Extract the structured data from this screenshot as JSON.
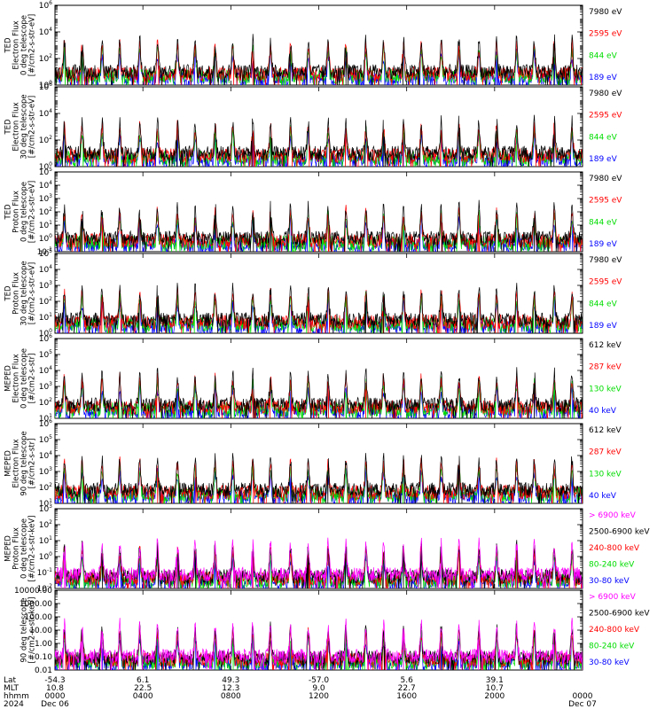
{
  "panels": [
    {
      "ylabel": [
        "TED",
        "Electron Flux",
        "0 deg telescope",
        "[#/cm2-s-str-eV]"
      ],
      "scale": "log",
      "yticks": [
        "10^0",
        "10^2",
        "10^4",
        "10^6"
      ],
      "ymin_exp": 0,
      "ymax_exp": 6,
      "legend": [
        {
          "label": "7980 eV",
          "color": "#000000"
        },
        {
          "label": "2595 eV",
          "color": "#ff0000"
        },
        {
          "label": "844 eV",
          "color": "#00dd00"
        },
        {
          "label": "189 eV",
          "color": "#0000ff"
        }
      ]
    },
    {
      "ylabel": [
        "TED",
        "Electron Flux",
        "30 deg telescope",
        "[#/cm2-s-str-eV]"
      ],
      "scale": "log",
      "yticks": [
        "10^0",
        "10^2",
        "10^4",
        "10^6"
      ],
      "ymin_exp": 0,
      "ymax_exp": 6,
      "legend": [
        {
          "label": "7980 eV",
          "color": "#000000"
        },
        {
          "label": "2595 eV",
          "color": "#ff0000"
        },
        {
          "label": "844 eV",
          "color": "#00dd00"
        },
        {
          "label": "189 eV",
          "color": "#0000ff"
        }
      ]
    },
    {
      "ylabel": [
        "TED",
        "Proton Flux",
        "0 deg telescope",
        "[#/cm2-s-str-eV]"
      ],
      "scale": "log",
      "yticks": [
        "10^-1",
        "10^0",
        "10^1",
        "10^2",
        "10^3",
        "10^4",
        "10^5"
      ],
      "ymin_exp": -1,
      "ymax_exp": 5,
      "legend": [
        {
          "label": "7980 eV",
          "color": "#000000"
        },
        {
          "label": "2595 eV",
          "color": "#ff0000"
        },
        {
          "label": "844 eV",
          "color": "#00dd00"
        },
        {
          "label": "189 eV",
          "color": "#0000ff"
        }
      ]
    },
    {
      "ylabel": [
        "TED",
        "Proton Flux",
        "30 deg telescope",
        "[#/cm2-s-str-eV]"
      ],
      "scale": "log",
      "yticks": [
        "10^0",
        "10^1",
        "10^2",
        "10^3",
        "10^4",
        "10^5"
      ],
      "ymin_exp": 0,
      "ymax_exp": 5,
      "legend": [
        {
          "label": "7980 eV",
          "color": "#000000"
        },
        {
          "label": "2595 eV",
          "color": "#ff0000"
        },
        {
          "label": "844 eV",
          "color": "#00dd00"
        },
        {
          "label": "189 eV",
          "color": "#0000ff"
        }
      ]
    },
    {
      "ylabel": [
        "MEPED",
        "Electron Flux",
        "0 deg telescope",
        "[#/cm2-s-str]"
      ],
      "scale": "log",
      "yticks": [
        "10^1",
        "10^2",
        "10^3",
        "10^4",
        "10^5",
        "10^6"
      ],
      "ymin_exp": 1,
      "ymax_exp": 6,
      "legend": [
        {
          "label": "612 keV",
          "color": "#000000"
        },
        {
          "label": "287 keV",
          "color": "#ff0000"
        },
        {
          "label": "130 keV",
          "color": "#00dd00"
        },
        {
          "label": "40 keV",
          "color": "#0000ff"
        }
      ]
    },
    {
      "ylabel": [
        "MEPED",
        "Electron Flux",
        "90 deg telescope",
        "[#/cm2-s-str]"
      ],
      "scale": "log",
      "yticks": [
        "10^1",
        "10^2",
        "10^3",
        "10^4",
        "10^5",
        "10^6"
      ],
      "ymin_exp": 1,
      "ymax_exp": 6,
      "legend": [
        {
          "label": "612 keV",
          "color": "#000000"
        },
        {
          "label": "287 keV",
          "color": "#ff0000"
        },
        {
          "label": "130 keV",
          "color": "#00dd00"
        },
        {
          "label": "40 keV",
          "color": "#0000ff"
        }
      ]
    },
    {
      "ylabel": [
        "MEPED",
        "Proton Flux",
        "0 deg telescope",
        "[#/cm2-s-str-keV]"
      ],
      "scale": "log",
      "yticks": [
        "10^-2",
        "10^-1",
        "10^0",
        "10^1",
        "10^2",
        "10^3"
      ],
      "ymin_exp": -2,
      "ymax_exp": 3,
      "legend": [
        {
          "label": "> 6900 keV",
          "color": "#ff00ff"
        },
        {
          "label": "2500-6900 keV",
          "color": "#000000"
        },
        {
          "label": "240-800 keV",
          "color": "#ff0000"
        },
        {
          "label": "80-240 keV",
          "color": "#00dd00"
        },
        {
          "label": "30-80 keV",
          "color": "#0000ff"
        }
      ]
    },
    {
      "ylabel": [
        "",
        "",
        "90 deg telescope",
        "[#/cm2-s-str-keV]"
      ],
      "scale": "log",
      "yticks": [
        "0.01",
        "0.10",
        "1.00",
        "10.00",
        "100.00",
        "1000.00",
        "10000.00"
      ],
      "ymin_exp": -2,
      "ymax_exp": 4,
      "legend": [
        {
          "label": "> 6900 keV",
          "color": "#ff00ff"
        },
        {
          "label": "2500-6900 keV",
          "color": "#000000"
        },
        {
          "label": "240-800 keV",
          "color": "#ff0000"
        },
        {
          "label": "80-240 keV",
          "color": "#00dd00"
        },
        {
          "label": "30-80 keV",
          "color": "#0000ff"
        }
      ]
    }
  ],
  "xaxis": {
    "row_labels": [
      "Lat",
      "MLT",
      "hhmm",
      "2024"
    ],
    "ticks": [
      {
        "lat": "-54.3",
        "mlt": "10.8",
        "hhmm": "0000",
        "date": "Dec 06"
      },
      {
        "lat": "6.1",
        "mlt": "22.5",
        "hhmm": "0400",
        "date": ""
      },
      {
        "lat": "49.3",
        "mlt": "12.3",
        "hhmm": "0800",
        "date": ""
      },
      {
        "lat": "-57.0",
        "mlt": "9.0",
        "hhmm": "1200",
        "date": ""
      },
      {
        "lat": "5.6",
        "mlt": "22.7",
        "hhmm": "1600",
        "date": ""
      },
      {
        "lat": "39.1",
        "mlt": "10.7",
        "hhmm": "2000",
        "date": ""
      },
      {
        "lat": "",
        "mlt": "",
        "hhmm": "0000",
        "date": "Dec 07"
      }
    ]
  },
  "chart_data": {
    "type": "line",
    "x_range_hours": [
      0,
      24
    ],
    "x_tick_hours": [
      0,
      4,
      8,
      12,
      16,
      20,
      24
    ],
    "pass_count": 14,
    "grid": false,
    "legend_placement": "right"
  }
}
